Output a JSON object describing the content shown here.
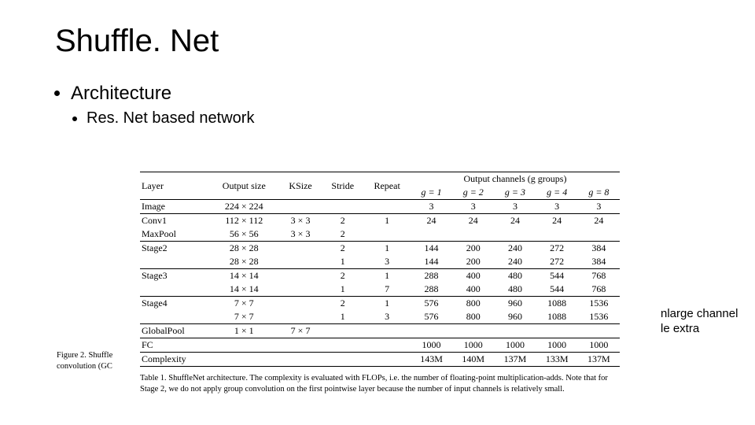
{
  "title": "Shuffle. Net",
  "bullets": {
    "l1": "Architecture",
    "l2": "Res. Net based network"
  },
  "table": {
    "headers": {
      "layer": "Layer",
      "outsize": "Output size",
      "ksize": "KSize",
      "stride": "Stride",
      "repeat": "Repeat",
      "outch": "Output channels (g groups)",
      "g1": "g = 1",
      "g2": "g = 2",
      "g3": "g = 3",
      "g4": "g = 4",
      "g8": "g = 8"
    },
    "image": {
      "layer": "Image",
      "os": "224 × 224",
      "g1": "3",
      "g2": "3",
      "g3": "3",
      "g4": "3",
      "g8": "3"
    },
    "conv1": {
      "layer": "Conv1",
      "os": "112 × 112",
      "ks": "3 × 3",
      "st": "2",
      "rp": "1",
      "g1": "24",
      "g2": "24",
      "g3": "24",
      "g4": "24",
      "g8": "24"
    },
    "maxpool": {
      "layer": "MaxPool",
      "os": "56 × 56",
      "ks": "3 × 3",
      "st": "2"
    },
    "s2a": {
      "layer": "Stage2",
      "os": "28 × 28",
      "st": "2",
      "rp": "1",
      "g1": "144",
      "g2": "200",
      "g3": "240",
      "g4": "272",
      "g8": "384"
    },
    "s2b": {
      "os": "28 × 28",
      "st": "1",
      "rp": "3",
      "g1": "144",
      "g2": "200",
      "g3": "240",
      "g4": "272",
      "g8": "384"
    },
    "s3a": {
      "layer": "Stage3",
      "os": "14 × 14",
      "st": "2",
      "rp": "1",
      "g1": "288",
      "g2": "400",
      "g3": "480",
      "g4": "544",
      "g8": "768"
    },
    "s3b": {
      "os": "14 × 14",
      "st": "1",
      "rp": "7",
      "g1": "288",
      "g2": "400",
      "g3": "480",
      "g4": "544",
      "g8": "768"
    },
    "s4a": {
      "layer": "Stage4",
      "os": "7 × 7",
      "st": "2",
      "rp": "1",
      "g1": "576",
      "g2": "800",
      "g3": "960",
      "g4": "1088",
      "g8": "1536"
    },
    "s4b": {
      "os": "7 × 7",
      "st": "1",
      "rp": "3",
      "g1": "576",
      "g2": "800",
      "g3": "960",
      "g4": "1088",
      "g8": "1536"
    },
    "gpool": {
      "layer": "GlobalPool",
      "os": "1 × 1",
      "ks": "7 × 7"
    },
    "fc": {
      "layer": "FC",
      "g1": "1000",
      "g2": "1000",
      "g3": "1000",
      "g4": "1000",
      "g8": "1000"
    },
    "complexity": {
      "layer": "Complexity",
      "g1": "143M",
      "g2": "140M",
      "g3": "137M",
      "g4": "133M",
      "g8": "137M"
    }
  },
  "caption": "Table 1. ShuffleNet architecture. The complexity is evaluated with FLOPs, i.e. the number of floating-point multiplication-adds. Note that for Stage 2, we do not apply group convolution on the first pointwise layer because the number of input channels is relatively small.",
  "figcap_l1": "Figure 2. Shuffle",
  "figcap_l2": "convolution (GC",
  "side": {
    "l1": "nlarge channel",
    "l2": "le extra"
  }
}
